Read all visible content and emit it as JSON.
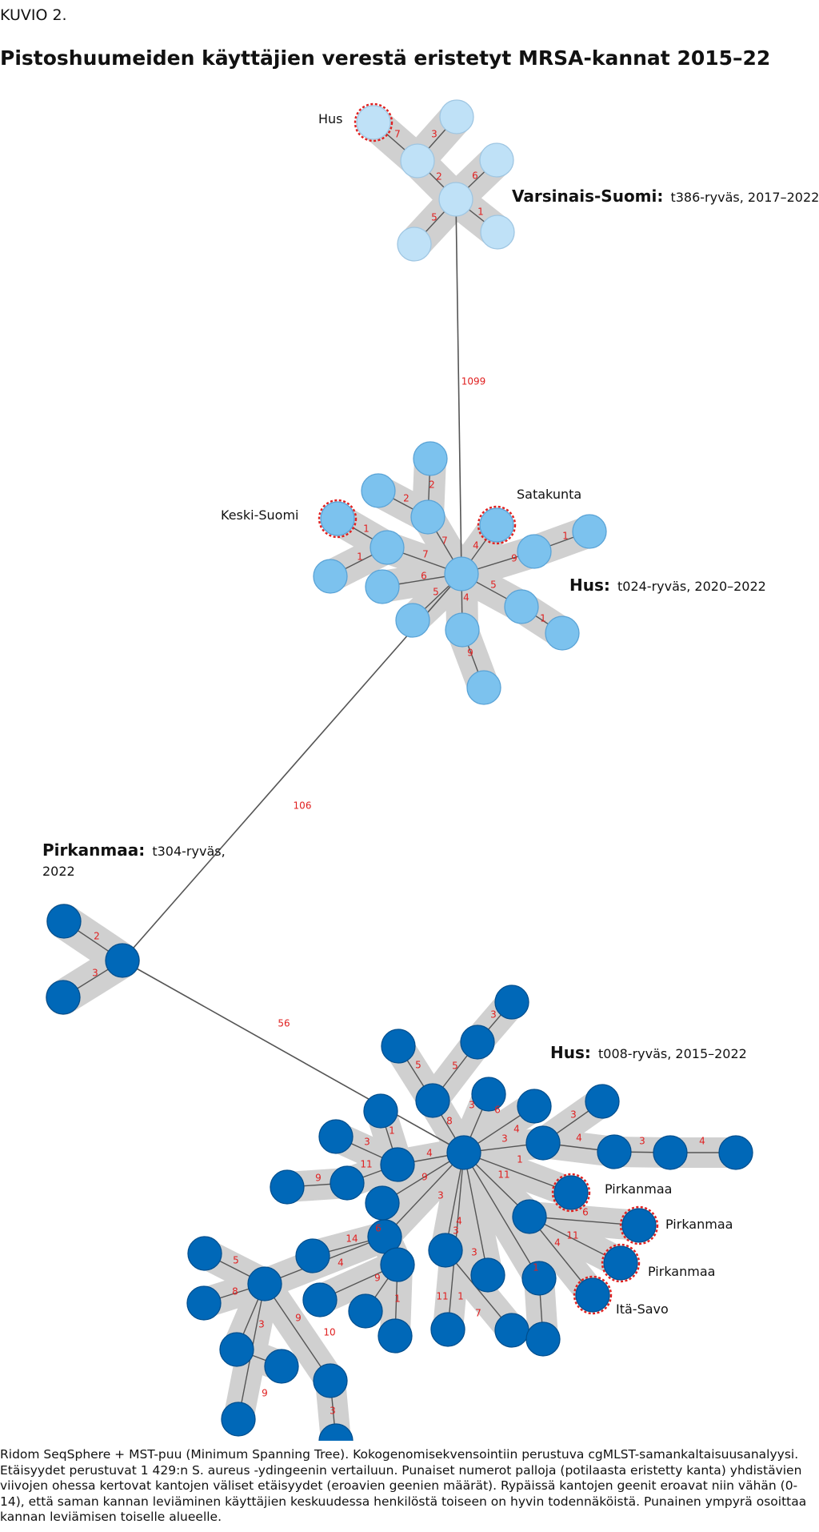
{
  "figure": {
    "label": "KUVIO 2.",
    "title": "Pistoshuumeiden käyttäjien verestä eristetyt MRSA-kannat 2015–22",
    "caption": "Ridom SeqSphere + MST-puu (Minimum Spanning Tree). Kokogenomisekvensointiin perustuva cgMLST-samankaltaisuusanalyysi. Etäisyydet perustuvat 1 429:n S. aureus -ydingeenin vertailuun. Punaiset numerot palloja (potilaasta eristetty kanta) yhdistävien viivojen ohessa kertovat kantojen väliset etäisyydet (eroavien geenien määrät). Rypäissä kantojen geenit eroavat niin vähän (0-14), että saman kannan leviäminen käyttäjien keskuudessa henkilöstä toiseen on hyvin todennäköistä. Punainen ympyrä osoittaa kannan leviämisen toiselle alueelle."
  },
  "colors": {
    "light": "#bfe1f7",
    "lightStroke": "#9fc6e2",
    "mid": "#7cc2ee",
    "midStroke": "#5aa3d6",
    "dark": "#0068b8",
    "darkStroke": "#004f8f",
    "halo": "#d0d0d0",
    "edge": "#555555",
    "number": "#e02020",
    "ring": "#e02020"
  },
  "clusters": [
    {
      "id": "t386",
      "region": "Varsinais-Suomi:",
      "desc": "t386-ryväs, 2017–2022"
    },
    {
      "id": "t024",
      "region": "Hus:",
      "desc": "t024-ryväs, 2020–2022"
    },
    {
      "id": "t304",
      "region": "Pirkanmaa:",
      "desc": "t304-ryväs,",
      "desc2": "2022"
    },
    {
      "id": "t008",
      "region": "Hus:",
      "desc": "t008-ryväs, 2015–2022"
    }
  ],
  "node_labels": [
    "Hus",
    "Keski-Suomi",
    "Satakunta",
    "Pirkanmaa",
    "Pirkanmaa",
    "Pirkanmaa",
    "Itä-Savo"
  ],
  "links": [
    {
      "value": "1099"
    },
    {
      "value": "106"
    },
    {
      "value": "56"
    }
  ],
  "edge_values": {
    "t386": [
      "7",
      "3",
      "2",
      "6",
      "5",
      "1"
    ],
    "t024": [
      "2",
      "2",
      "7",
      "1",
      "1",
      "7",
      "6",
      "5",
      "4",
      "4",
      "9",
      "1",
      "5",
      "1",
      "9"
    ],
    "t304": [
      "2",
      "3"
    ],
    "t008": [
      "3",
      "5",
      "5",
      "8",
      "3",
      "6",
      "4",
      "3",
      "3",
      "4",
      "3",
      "4",
      "1",
      "4",
      "1",
      "3",
      "11",
      "9",
      "9",
      "14",
      "6",
      "4",
      "9",
      "1",
      "11",
      "5",
      "8",
      "9",
      "9",
      "10",
      "3",
      "3",
      "3",
      "1",
      "3",
      "7",
      "11",
      "6",
      "11",
      "4",
      "1",
      "4",
      "3"
    ]
  }
}
